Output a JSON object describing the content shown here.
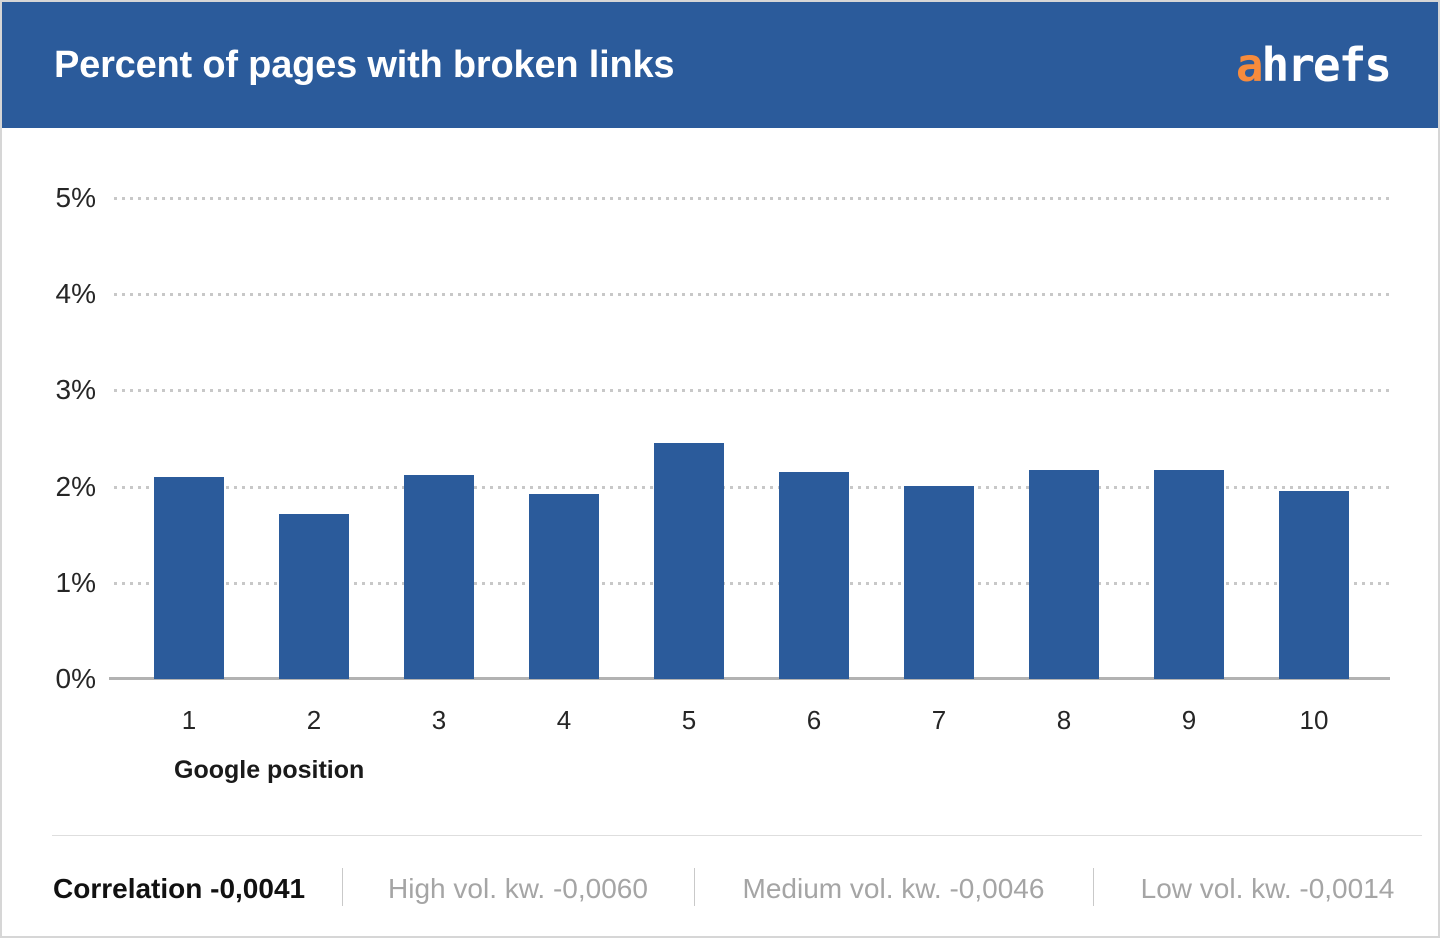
{
  "header": {
    "title": "Percent of pages with broken links",
    "logo_a": "a",
    "logo_rest": "hrefs",
    "logo_accent_color": "#f68b3c",
    "background_color": "#2b5b9b"
  },
  "chart_data": {
    "type": "bar",
    "title": "Percent of pages with broken links",
    "categories": [
      "1",
      "2",
      "3",
      "4",
      "5",
      "6",
      "7",
      "8",
      "9",
      "10"
    ],
    "values": [
      2.1,
      1.71,
      2.12,
      1.92,
      2.45,
      2.15,
      2.01,
      2.17,
      2.17,
      1.95
    ],
    "series_name": "Percent of pages with broken links",
    "xlabel": "Google position",
    "ylabel": "",
    "ylim": [
      0,
      5
    ],
    "yticks": [
      0,
      1,
      2,
      3,
      4,
      5
    ],
    "ytick_suffix": "%",
    "grid": "horizontal-dotted",
    "legend": "none",
    "bar_color": "#2b5b9b",
    "gridline_color": "#c8c8c8",
    "axis_color": "#b2b2b2"
  },
  "footer": {
    "correlation": "Correlation -0,0041",
    "segments": [
      {
        "label": "High vol. kw. -0,0060"
      },
      {
        "label": "Medium vol. kw. -0,0046"
      },
      {
        "label": "Low vol. kw. -0,0014"
      }
    ]
  }
}
